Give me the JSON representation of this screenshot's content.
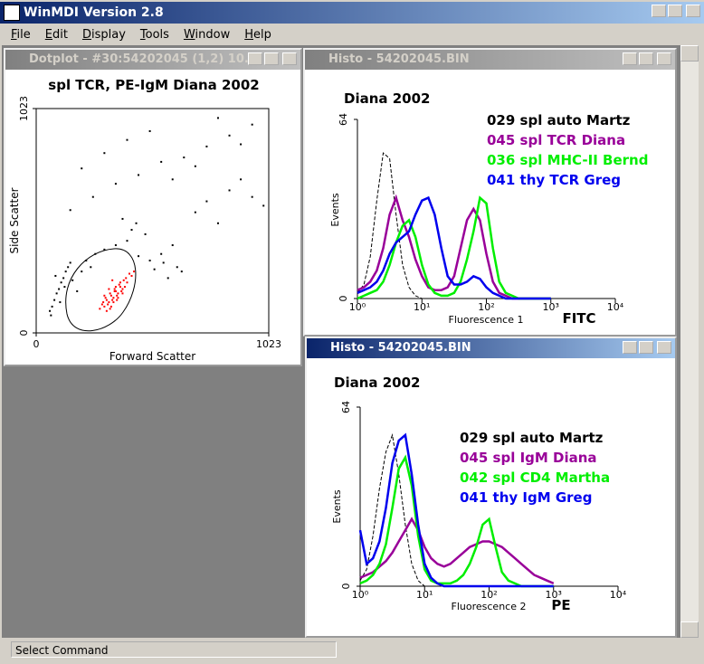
{
  "app": {
    "title": "WinMDI Version 2.8",
    "menu": [
      "File",
      "Edit",
      "Display",
      "Tools",
      "Window",
      "Help"
    ],
    "status": "Select Command"
  },
  "windows": [
    {
      "title": "Dotplot - #30:54202045 (1,2) 10...",
      "chart_data": {
        "type": "scatter",
        "title": "spl TCR, PE-IgM  Diana 2002",
        "x_label": "Forward Scatter",
        "y_label": "Side Scatter",
        "xlim": [
          0,
          1023
        ],
        "ylim": [
          0,
          1023
        ],
        "xticks": [
          0,
          1023
        ],
        "yticks": [
          0,
          1023
        ],
        "series": [
          {
            "color": "#000000",
            "x": [
              60,
              80,
              100,
              120,
              140,
              70,
              90,
              110,
              130,
              150,
              65,
              85,
              105,
              125,
              160,
              180,
              200,
              220,
              240,
              260,
              300,
              350,
              400,
              450,
              500,
              550,
              600,
              620,
              640,
              560,
              580,
              520,
              480,
              440,
              420,
              380,
              700,
              750,
              800,
              850,
              900,
              950,
              1000,
              150,
              250,
              350,
              450,
              550,
              650,
              750,
              850,
              950,
              200,
              300,
              400,
              500,
              600,
              700,
              800,
              900
            ],
            "y": [
              100,
              150,
              200,
              250,
              300,
              120,
              180,
              230,
              280,
              320,
              80,
              260,
              140,
              210,
              240,
              190,
              280,
              330,
              300,
              360,
              380,
              400,
              420,
              350,
              330,
              360,
              400,
              300,
              280,
              320,
              250,
              290,
              450,
              500,
              470,
              520,
              550,
              600,
              500,
              650,
              700,
              620,
              580,
              560,
              620,
              680,
              720,
              780,
              800,
              850,
              900,
              950,
              750,
              820,
              880,
              920,
              700,
              760,
              980,
              860
            ]
          },
          {
            "color": "#ff0000",
            "x": [
              300,
              320,
              340,
              360,
              380,
              310,
              330,
              350,
              370,
              290,
              305,
              325,
              345,
              365,
              385,
              400,
              420,
              280,
              295,
              315,
              335,
              355,
              375,
              395,
              410,
              430,
              350,
              340,
              330,
              360,
              370,
              380,
              320,
              310,
              300,
              390,
              345,
              355,
              335,
              325
            ],
            "y": [
              120,
              140,
              160,
              180,
              200,
              150,
              170,
              190,
              210,
              130,
              160,
              180,
              200,
              220,
              240,
              230,
              260,
              110,
              140,
              130,
              150,
              170,
              190,
              250,
              270,
              280,
              210,
              140,
              120,
              160,
              230,
              180,
              200,
              100,
              170,
              210,
              190,
              150,
              240,
              110
            ]
          }
        ]
      }
    },
    {
      "title": "Histo - 54202045.BIN",
      "chart_data": {
        "type": "line",
        "title": "Diana 2002",
        "x_label": "Fluorescence 1",
        "channel": "FITC",
        "y_label": "Events",
        "log_x": true,
        "xlim": [
          1,
          10000
        ],
        "xticks": [
          {
            "value": 1,
            "label": "10⁰"
          },
          {
            "value": 10,
            "label": "10¹"
          },
          {
            "value": 100,
            "label": "10²"
          },
          {
            "value": 1000,
            "label": "10³"
          },
          {
            "value": 10000,
            "label": "10⁴"
          }
        ],
        "ylim": [
          0,
          64
        ],
        "yticks": [
          0,
          64
        ],
        "x": [
          1,
          1.26,
          1.58,
          2,
          2.51,
          3.16,
          3.98,
          5.01,
          6.31,
          7.94,
          10,
          12.6,
          15.8,
          20,
          25.1,
          31.6,
          39.8,
          50.1,
          63.1,
          79.4,
          100,
          126,
          158,
          200,
          251,
          316,
          398,
          501,
          631,
          794,
          1000
        ],
        "series": [
          {
            "name": "029 spl auto Martz",
            "color": "#000000",
            "dashed": true,
            "values": [
              2,
              5,
              15,
              35,
              52,
              50,
              30,
              12,
              4,
              1,
              0,
              0,
              0,
              0,
              0,
              0,
              0,
              0,
              0,
              0,
              0,
              0,
              0,
              0,
              0,
              0,
              0,
              0,
              0,
              0,
              0
            ]
          },
          {
            "name": "045 spl TCR Diana",
            "color": "#990099",
            "values": [
              3,
              4,
              6,
              10,
              18,
              30,
              36,
              28,
              22,
              14,
              8,
              4,
              3,
              3,
              4,
              8,
              18,
              28,
              32,
              28,
              16,
              6,
              2,
              1,
              0,
              0,
              0,
              0,
              0,
              0,
              0
            ]
          },
          {
            "name": "036 spl MHC-II Bernd",
            "color": "#00ee00",
            "values": [
              0,
              1,
              2,
              3,
              6,
              12,
              20,
              26,
              28,
              22,
              12,
              5,
              2,
              1,
              1,
              2,
              6,
              14,
              24,
              36,
              34,
              18,
              6,
              2,
              1,
              0,
              0,
              0,
              0,
              0,
              0
            ]
          },
          {
            "name": "041 thy TCR Greg",
            "color": "#0000ee",
            "values": [
              2,
              3,
              4,
              6,
              10,
              16,
              20,
              22,
              24,
              30,
              35,
              36,
              30,
              18,
              8,
              5,
              5,
              6,
              8,
              7,
              4,
              2,
              1,
              0,
              0,
              0,
              0,
              0,
              0,
              0,
              0
            ]
          }
        ]
      }
    },
    {
      "title": "Histo - 54202045.BIN",
      "chart_data": {
        "type": "line",
        "title": "Diana 2002",
        "x_label": "Fluorescence 2",
        "channel": "PE",
        "y_label": "Events",
        "log_x": true,
        "xlim": [
          1,
          10000
        ],
        "xticks": [
          {
            "value": 1,
            "label": "10⁰"
          },
          {
            "value": 10,
            "label": "10¹"
          },
          {
            "value": 100,
            "label": "10²"
          },
          {
            "value": 1000,
            "label": "10³"
          },
          {
            "value": 10000,
            "label": "10⁴"
          }
        ],
        "ylim": [
          0,
          64
        ],
        "yticks": [
          0,
          64
        ],
        "x": [
          1,
          1.26,
          1.58,
          2,
          2.51,
          3.16,
          3.98,
          5.01,
          6.31,
          7.94,
          10,
          12.6,
          15.8,
          20,
          25.1,
          31.6,
          39.8,
          50.1,
          63.1,
          79.4,
          100,
          126,
          158,
          200,
          251,
          316,
          398,
          501,
          631,
          794,
          1000
        ],
        "series": [
          {
            "name": "029 spl auto Martz",
            "color": "#000000",
            "dashed": true,
            "values": [
              2,
              6,
              18,
              35,
              48,
              54,
              40,
              22,
              8,
              2,
              0,
              0,
              0,
              0,
              0,
              0,
              0,
              0,
              0,
              0,
              0,
              0,
              0,
              0,
              0,
              0,
              0,
              0,
              0,
              0,
              0
            ]
          },
          {
            "name": "045 spl IgM Diana",
            "color": "#990099",
            "values": [
              3,
              4,
              5,
              7,
              9,
              12,
              16,
              20,
              24,
              20,
              14,
              10,
              8,
              7,
              8,
              10,
              12,
              14,
              15,
              16,
              16,
              15,
              14,
              12,
              10,
              8,
              6,
              4,
              3,
              2,
              1
            ]
          },
          {
            "name": "042 spl CD4 Martha",
            "color": "#00ee00",
            "values": [
              1,
              2,
              4,
              8,
              15,
              28,
              42,
              46,
              36,
              18,
              6,
              2,
              1,
              1,
              1,
              2,
              4,
              8,
              14,
              22,
              24,
              14,
              5,
              2,
              1,
              0,
              0,
              0,
              0,
              0,
              0
            ]
          },
          {
            "name": "041 thy IgM Greg",
            "color": "#0000ee",
            "values": [
              20,
              8,
              10,
              16,
              28,
              44,
              52,
              54,
              40,
              22,
              8,
              3,
              1,
              0,
              0,
              0,
              0,
              0,
              0,
              0,
              0,
              0,
              0,
              0,
              0,
              0,
              0,
              0,
              0,
              0,
              0
            ]
          }
        ]
      }
    }
  ]
}
